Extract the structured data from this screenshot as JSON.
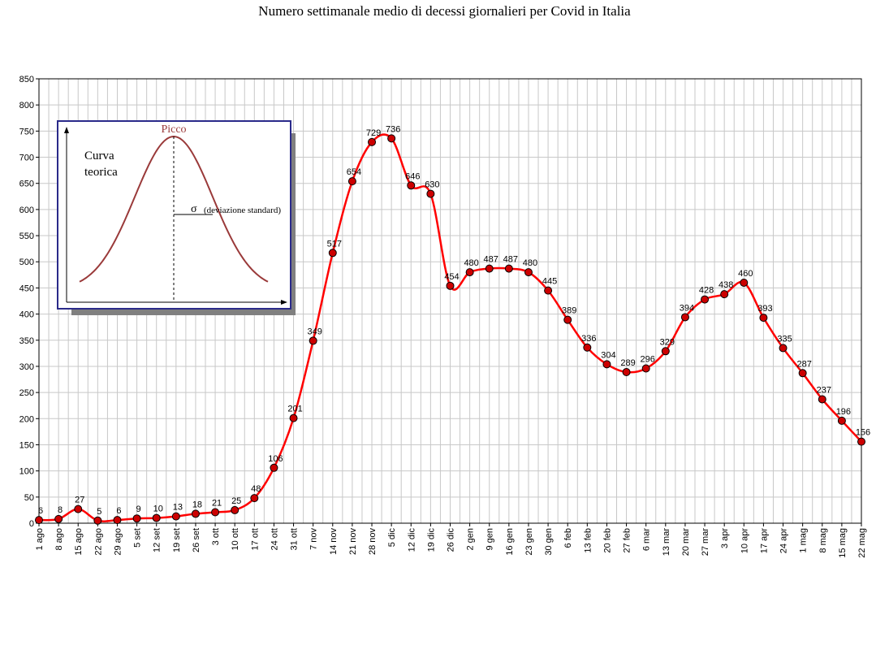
{
  "chart_data": {
    "type": "line",
    "title": "Numero settimanale medio di decessi giornalieri per Covid in Italia",
    "xlabel": "",
    "ylabel": "",
    "ylim": [
      0,
      850
    ],
    "yticks": [
      0,
      50,
      100,
      150,
      200,
      250,
      300,
      350,
      400,
      450,
      500,
      550,
      600,
      650,
      700,
      750,
      800,
      850
    ],
    "grid": true,
    "categories": [
      "1 ago",
      "8 ago",
      "15 ago",
      "22 ago",
      "29 ago",
      "5 set",
      "12 set",
      "19 set",
      "26 set",
      "3 ott",
      "10 ott",
      "17 ott",
      "24 ott",
      "31 ott",
      "7 nov",
      "14 nov",
      "21 nov",
      "28 nov",
      "5 dic",
      "12 dic",
      "19 dic",
      "26 dic",
      "2 gen",
      "9 gen",
      "16 gen",
      "23 gen",
      "30 gen",
      "6 feb",
      "13 feb",
      "20 feb",
      "27 feb",
      "6 mar",
      "13 mar",
      "20 mar",
      "27 mar",
      "3 apr",
      "10 apr",
      "17 apr",
      "24 apr",
      "1 mag",
      "8 mag",
      "15 mag",
      "22 mag"
    ],
    "series": [
      {
        "values": [
          6,
          8,
          27,
          5,
          6,
          9,
          10,
          13,
          18,
          21,
          25,
          48,
          106,
          201,
          349,
          517,
          654,
          729,
          736,
          646,
          630,
          454,
          480,
          487,
          487,
          480,
          445,
          389,
          336,
          304,
          289,
          296,
          329,
          394,
          428,
          438,
          460,
          393,
          335,
          287,
          237,
          196,
          156
        ],
        "color": "#ff0000",
        "marker_color": "#cc0000"
      }
    ],
    "inset": {
      "peak_label": "Picco",
      "curve_label_line1": "Curva",
      "curve_label_line2": "teorica",
      "sigma_symbol": "σ",
      "sigma_label": "(deviazione standard)"
    }
  }
}
